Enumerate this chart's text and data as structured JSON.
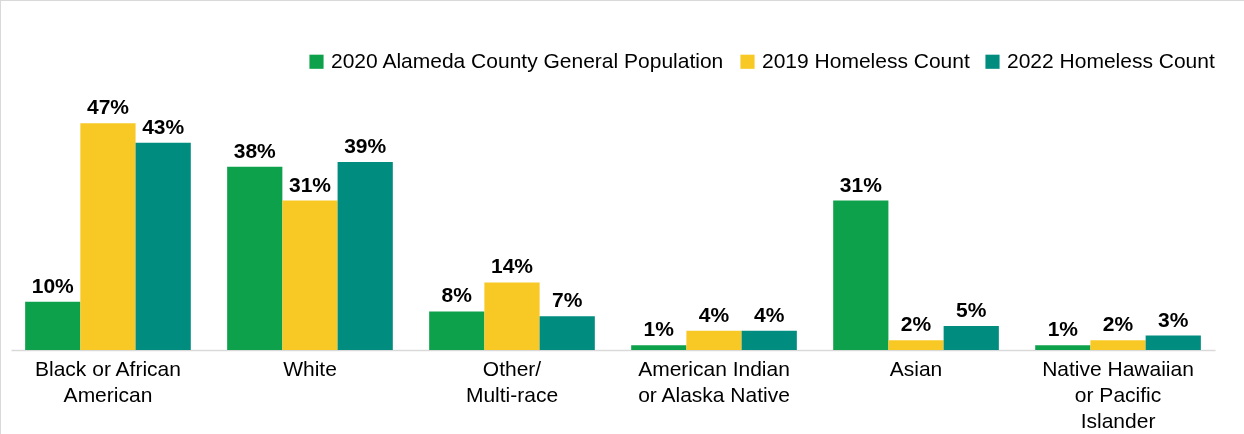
{
  "chart_data": {
    "type": "bar",
    "categories": [
      "Black or African\nAmerican",
      "White",
      "Other/\nMulti-race",
      "American Indian\nor Alaska Native",
      "Asian",
      "Native Hawaiian\nor Pacific\nIslander"
    ],
    "series": [
      {
        "name": "2020 Alameda County General Population",
        "color": "#0ea14b",
        "values": [
          10,
          38,
          8,
          1,
          31,
          1
        ],
        "value_labels": [
          "10%",
          "38%",
          "8%",
          "1%",
          "31%",
          "1%"
        ]
      },
      {
        "name": "2019 Homeless Count",
        "color": "#f8c825",
        "values": [
          47,
          31,
          14,
          4,
          2,
          2
        ],
        "value_labels": [
          "47%",
          "31%",
          "14%",
          "4%",
          "2%",
          "2%"
        ]
      },
      {
        "name": "2022 Homeless Count",
        "color": "#008c7f",
        "values": [
          43,
          39,
          7,
          4,
          5,
          3
        ],
        "value_labels": [
          "43%",
          "39%",
          "7%",
          "4%",
          "5%",
          "3%"
        ]
      }
    ],
    "legend": "top right",
    "grid": false,
    "tick_labels": "x"
  }
}
